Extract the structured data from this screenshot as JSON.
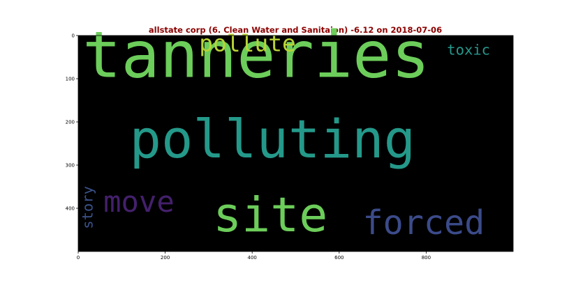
{
  "chart_data": {
    "type": "wordcloud",
    "title": "allstate corp (6. Clean Water and Sanitaion) -6.12 on 2018-07-06",
    "title_color": "#8b0000",
    "background": "#000000",
    "xlim": [
      0,
      1000
    ],
    "ylim": [
      500,
      0
    ],
    "x_ticks": [
      0,
      200,
      400,
      600,
      800
    ],
    "y_ticks": [
      0,
      100,
      200,
      300,
      400
    ],
    "words": [
      {
        "text": "tanneries",
        "x": 10,
        "y": 96,
        "size": 148,
        "color": "#6ccd5a",
        "rotate": 0
      },
      {
        "text": "polluting",
        "x": 118,
        "y": 282,
        "size": 122,
        "color": "#24998a",
        "rotate": 0
      },
      {
        "text": "site",
        "x": 310,
        "y": 453,
        "size": 110,
        "color": "#6ccd5a",
        "rotate": 0
      },
      {
        "text": "forced",
        "x": 654,
        "y": 460,
        "size": 78,
        "color": "#3b4b8a",
        "rotate": 0
      },
      {
        "text": "move",
        "x": 58,
        "y": 408,
        "size": 68,
        "color": "#44206c",
        "rotate": 0
      },
      {
        "text": "pollute",
        "x": 278,
        "y": 36,
        "size": 53,
        "color": "#b8d436",
        "rotate": 0
      },
      {
        "text": "toxic",
        "x": 848,
        "y": 44,
        "size": 33,
        "color": "#26988c",
        "rotate": 0
      },
      {
        "text": "story",
        "x": 33,
        "y": 448,
        "size": 33,
        "color": "#3b528b",
        "rotate": -90
      }
    ]
  }
}
